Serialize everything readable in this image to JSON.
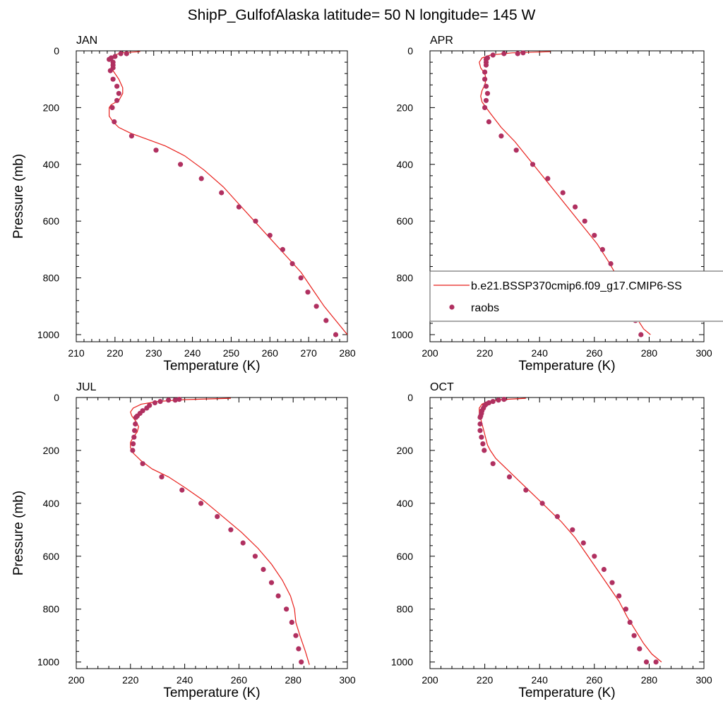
{
  "title": "ShipP_GulfofAlaska  latitude= 50 N longitude= 145 W",
  "colors": {
    "model_line": "#e8201c",
    "obs_marker": "#b03060",
    "axis": "#000000"
  },
  "legend": {
    "location": "inside APR panel, lower area",
    "entries": [
      "b.e21.BSSP370cmip6.f09_g17.CMIP6-SS",
      "raobs"
    ]
  },
  "chart_data": [
    {
      "type": "line+scatter",
      "panel": "JAN",
      "xlabel": "Temperature (K)",
      "ylabel": "Pressure (mb)",
      "xlim": [
        210,
        280
      ],
      "ylim": [
        1025,
        0
      ],
      "xticks": [
        "210",
        "220",
        "230",
        "240",
        "250",
        "260",
        "270",
        "280"
      ],
      "yticks": [
        "0",
        "200",
        "400",
        "600",
        "800",
        "1000"
      ],
      "model": {
        "name": "b.e21.BSSP370cmip6.f09_g17.CMIP6-SS",
        "x": [
          226.5,
          221.5,
          220,
          219.5,
          219,
          219.5,
          221,
          222,
          222,
          221,
          219,
          218.5,
          218.5,
          219.5,
          221,
          224,
          228,
          233,
          238,
          243,
          248,
          252,
          256,
          260,
          264,
          268,
          271,
          274,
          277,
          280
        ],
        "y": [
          3,
          7,
          15,
          25,
          40,
          70,
          100,
          130,
          150,
          175,
          190,
          200,
          230,
          250,
          270,
          290,
          310,
          335,
          370,
          420,
          480,
          540,
          600,
          660,
          720,
          780,
          840,
          900,
          950,
          1000
        ]
      },
      "obs": {
        "name": "raobs",
        "x": [
          223,
          221.5,
          220,
          219,
          218.5,
          219.5,
          219.5,
          219.5,
          218.8,
          219.5,
          220.5,
          221,
          220.5,
          219.3,
          219.8,
          224.3,
          230.6,
          236.9,
          242.3,
          247.5,
          252,
          256.3,
          260,
          263.3,
          265.8,
          268,
          269.8,
          272,
          274.5,
          277
        ],
        "y": [
          10,
          10,
          20,
          25,
          30,
          40,
          50,
          60,
          70,
          100,
          125,
          150,
          175,
          200,
          250,
          300,
          350,
          400,
          450,
          500,
          550,
          600,
          650,
          700,
          750,
          800,
          850,
          900,
          950,
          1000
        ]
      }
    },
    {
      "type": "line+scatter",
      "panel": "APR",
      "xlabel": "Temperature (K)",
      "ylabel": "",
      "xlim": [
        200,
        300
      ],
      "ylim": [
        1025,
        0
      ],
      "xticks": [
        "200",
        "220",
        "240",
        "260",
        "280",
        "300"
      ],
      "yticks": [
        "0",
        "200",
        "400",
        "600",
        "800",
        "1000"
      ],
      "model": {
        "name": "b.e21.BSSP370cmip6.f09_g17.CMIP6-SS",
        "x": [
          244,
          230,
          222,
          219,
          218,
          218.5,
          220,
          220.5,
          220,
          219,
          218.5,
          219,
          220.5,
          222,
          226,
          231,
          236,
          241,
          246,
          251,
          256,
          261,
          265,
          268,
          270,
          272,
          274,
          276,
          278,
          280.5
        ],
        "y": [
          3,
          7,
          15,
          25,
          40,
          60,
          80,
          100,
          120,
          140,
          160,
          180,
          200,
          220,
          270,
          320,
          380,
          440,
          500,
          560,
          620,
          680,
          740,
          790,
          840,
          880,
          920,
          950,
          980,
          1000
        ]
      },
      "obs": {
        "name": "raobs",
        "x": [
          234,
          232,
          227,
          223,
          221,
          220.5,
          220.5,
          220.5,
          220,
          220,
          220.5,
          221,
          220.5,
          220,
          221.5,
          226,
          231.5,
          237.5,
          243,
          248.5,
          253,
          256.5,
          260,
          263,
          266,
          268,
          270,
          272,
          275,
          277
        ],
        "y": [
          7,
          10,
          10,
          15,
          25,
          30,
          40,
          50,
          75,
          100,
          125,
          150,
          175,
          200,
          250,
          300,
          350,
          400,
          450,
          500,
          550,
          600,
          650,
          700,
          750,
          800,
          850,
          900,
          950,
          1000
        ]
      }
    },
    {
      "type": "line+scatter",
      "panel": "JUL",
      "xlabel": "Temperature (K)",
      "ylabel": "Pressure (mb)",
      "xlim": [
        200,
        300
      ],
      "ylim": [
        1025,
        0
      ],
      "xticks": [
        "200",
        "220",
        "240",
        "260",
        "280",
        "300"
      ],
      "yticks": [
        "0",
        "200",
        "400",
        "600",
        "800",
        "1000"
      ],
      "model": {
        "name": "b.e21.BSSP370cmip6.f09_g17.CMIP6-SS",
        "x": [
          257,
          240,
          230,
          224,
          221,
          220,
          220.5,
          222,
          223,
          222.5,
          221,
          220,
          220,
          221,
          224,
          228,
          234,
          240,
          247,
          254,
          261,
          267,
          272,
          276,
          279,
          280.5,
          281,
          282.5,
          284.5,
          286
        ],
        "y": [
          3,
          8,
          15,
          25,
          40,
          55,
          70,
          90,
          110,
          130,
          150,
          170,
          190,
          210,
          240,
          270,
          300,
          340,
          390,
          450,
          510,
          570,
          630,
          690,
          750,
          800,
          850,
          900,
          960,
          1010
        ]
      },
      "obs": {
        "name": "raobs",
        "x": [
          238,
          236.5,
          234,
          231,
          229,
          227,
          226,
          224.5,
          223.5,
          222.5,
          222,
          221.8,
          221.5,
          221.3,
          221,
          220.8,
          224.5,
          231.5,
          239,
          246,
          252,
          257,
          261.5,
          266,
          269,
          272,
          274.5,
          277.5,
          279.5,
          281,
          282,
          283
        ],
        "y": [
          7,
          10,
          10,
          15,
          20,
          30,
          40,
          50,
          60,
          70,
          75,
          100,
          125,
          150,
          175,
          200,
          250,
          300,
          350,
          400,
          450,
          500,
          550,
          600,
          650,
          700,
          750,
          800,
          850,
          900,
          950,
          1000
        ]
      }
    },
    {
      "type": "line+scatter",
      "panel": "OCT",
      "xlabel": "Temperature (K)",
      "ylabel": "",
      "xlim": [
        200,
        300
      ],
      "ylim": [
        1025,
        0
      ],
      "xticks": [
        "200",
        "220",
        "240",
        "260",
        "280",
        "300"
      ],
      "yticks": [
        "0",
        "200",
        "400",
        "600",
        "800",
        "1000"
      ],
      "model": {
        "name": "b.e21.BSSP370cmip6.f09_g17.CMIP6-SS",
        "x": [
          235,
          226,
          221,
          219,
          218,
          218,
          218.5,
          219,
          219.5,
          220,
          220.5,
          221,
          222,
          224,
          228,
          233,
          238,
          243,
          248,
          253,
          257,
          261,
          265,
          269,
          272,
          275,
          278,
          281,
          284.5
        ],
        "y": [
          3,
          8,
          15,
          25,
          40,
          60,
          80,
          100,
          120,
          140,
          160,
          180,
          200,
          230,
          270,
          320,
          370,
          420,
          470,
          530,
          590,
          650,
          710,
          770,
          830,
          880,
          930,
          970,
          1000
        ]
      },
      "obs": {
        "name": "raobs",
        "x": [
          227,
          225,
          223,
          221.5,
          220.5,
          220,
          219.5,
          219,
          218.8,
          218.5,
          218.3,
          218.3,
          218.3,
          218.8,
          219.3,
          219.8,
          223,
          229,
          235,
          241,
          246.5,
          252,
          256,
          260,
          263.5,
          266.5,
          269,
          271.5,
          273,
          274.5,
          276.5,
          279,
          282.5
        ],
        "y": [
          7,
          10,
          15,
          20,
          25,
          30,
          40,
          50,
          60,
          70,
          75,
          100,
          125,
          150,
          175,
          200,
          250,
          300,
          350,
          400,
          450,
          500,
          550,
          600,
          650,
          700,
          750,
          800,
          850,
          900,
          950,
          1000,
          1000
        ]
      }
    }
  ]
}
